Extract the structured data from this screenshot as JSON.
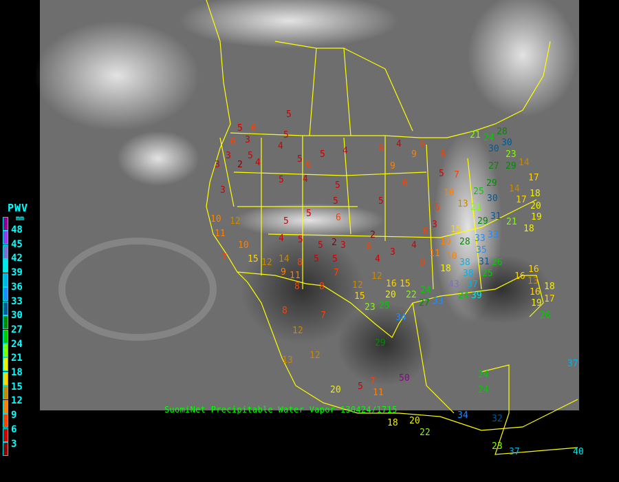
{
  "title": "SuomiNet Precipitable Water Vapor 130424/1715",
  "legend": {
    "title": "PWV",
    "unit": "mm",
    "labels": [
      "48",
      "45",
      "42",
      "39",
      "36",
      "33",
      "30",
      "27",
      "24",
      "21",
      "18",
      "15",
      "12",
      "9",
      "6",
      "3"
    ],
    "colors": [
      "#900090",
      "#9a3af0",
      "#7a70d0",
      "#00e8e8",
      "#00b4e8",
      "#1e8cff",
      "#005a96",
      "#008c00",
      "#00cc00",
      "#80ff00",
      "#f0f000",
      "#ffd200",
      "#c88800",
      "#ff8000",
      "#ff4000",
      "#d00000",
      "#8b0000"
    ]
  },
  "colors": {
    "background": "#000000",
    "borders": "#ffff00",
    "title": "#00ff00",
    "legend_text": "#00ffff"
  },
  "stations": [
    {
      "value": "5"
    },
    {
      "value": "6"
    },
    {
      "value": "3"
    },
    {
      "value": "5"
    },
    {
      "value": "4"
    },
    {
      "value": "3"
    },
    {
      "value": "2"
    },
    {
      "value": "3"
    },
    {
      "value": "5"
    },
    {
      "value": "4"
    },
    {
      "value": "5"
    },
    {
      "value": "6"
    },
    {
      "value": "5"
    },
    {
      "value": "4"
    },
    {
      "value": "8"
    },
    {
      "value": "4"
    },
    {
      "value": "6"
    },
    {
      "value": "9"
    },
    {
      "value": "9"
    },
    {
      "value": "6"
    },
    {
      "value": "5"
    },
    {
      "value": "8"
    },
    {
      "value": "5"
    },
    {
      "value": "7"
    },
    {
      "value": "3"
    },
    {
      "value": "5"
    },
    {
      "value": "4"
    },
    {
      "value": "5"
    },
    {
      "value": "5"
    },
    {
      "value": "6"
    },
    {
      "value": "10"
    },
    {
      "value": "12"
    },
    {
      "value": "11"
    },
    {
      "value": "10"
    },
    {
      "value": "7"
    },
    {
      "value": "5"
    },
    {
      "value": "5"
    },
    {
      "value": "4"
    },
    {
      "value": "5"
    },
    {
      "value": "5"
    },
    {
      "value": "2"
    },
    {
      "value": "5"
    },
    {
      "value": "5"
    },
    {
      "value": "3"
    },
    {
      "value": "2"
    },
    {
      "value": "7"
    },
    {
      "value": "6"
    },
    {
      "value": "4"
    },
    {
      "value": "3"
    },
    {
      "value": "8"
    },
    {
      "value": "4"
    },
    {
      "value": "6"
    },
    {
      "value": "3"
    },
    {
      "value": "6"
    },
    {
      "value": "10"
    },
    {
      "value": "13"
    },
    {
      "value": "15"
    },
    {
      "value": "10"
    },
    {
      "value": "11"
    },
    {
      "value": "8"
    },
    {
      "value": "8"
    },
    {
      "value": "12"
    },
    {
      "value": "12"
    },
    {
      "value": "15"
    },
    {
      "value": "16"
    },
    {
      "value": "15"
    },
    {
      "value": "20"
    },
    {
      "value": "22"
    },
    {
      "value": "24"
    },
    {
      "value": "18"
    },
    {
      "value": "23"
    },
    {
      "value": "25"
    },
    {
      "value": "27"
    },
    {
      "value": "33"
    },
    {
      "value": "34"
    },
    {
      "value": "29"
    },
    {
      "value": "8"
    },
    {
      "value": "7"
    },
    {
      "value": "12"
    },
    {
      "value": "12"
    },
    {
      "value": "13"
    },
    {
      "value": "5"
    },
    {
      "value": "7"
    },
    {
      "value": "11"
    },
    {
      "value": "50"
    },
    {
      "value": "20"
    },
    {
      "value": "18"
    },
    {
      "value": "20"
    },
    {
      "value": "22"
    },
    {
      "value": "34"
    },
    {
      "value": "32"
    },
    {
      "value": "23"
    },
    {
      "value": "37"
    },
    {
      "value": "24"
    },
    {
      "value": "24"
    },
    {
      "value": "37"
    },
    {
      "value": "40"
    },
    {
      "value": "26"
    },
    {
      "value": "21"
    },
    {
      "value": "28"
    },
    {
      "value": "30"
    },
    {
      "value": "29"
    },
    {
      "value": "25"
    },
    {
      "value": "29"
    },
    {
      "value": "27"
    },
    {
      "value": "23"
    },
    {
      "value": "30"
    },
    {
      "value": "29"
    },
    {
      "value": "21"
    },
    {
      "value": "31"
    },
    {
      "value": "28"
    },
    {
      "value": "33"
    },
    {
      "value": "35"
    },
    {
      "value": "38"
    },
    {
      "value": "31"
    },
    {
      "value": "26"
    },
    {
      "value": "25"
    },
    {
      "value": "38"
    },
    {
      "value": "37"
    },
    {
      "value": "24"
    },
    {
      "value": "43"
    },
    {
      "value": "39"
    },
    {
      "value": "14"
    },
    {
      "value": "14"
    },
    {
      "value": "17"
    },
    {
      "value": "18"
    },
    {
      "value": "17"
    },
    {
      "value": "20"
    },
    {
      "value": "19"
    },
    {
      "value": "21"
    },
    {
      "value": "18"
    },
    {
      "value": "16"
    },
    {
      "value": "13"
    },
    {
      "value": "16"
    },
    {
      "value": "18"
    },
    {
      "value": "17"
    },
    {
      "value": "19"
    },
    {
      "value": "16"
    },
    {
      "value": "10"
    },
    {
      "value": "30"
    },
    {
      "value": "24"
    },
    {
      "value": "33"
    },
    {
      "value": "15"
    },
    {
      "value": "12"
    },
    {
      "value": "14"
    },
    {
      "value": "11"
    },
    {
      "value": "9"
    },
    {
      "value": "8"
    },
    {
      "value": "6"
    },
    {
      "value": "5"
    }
  ]
}
